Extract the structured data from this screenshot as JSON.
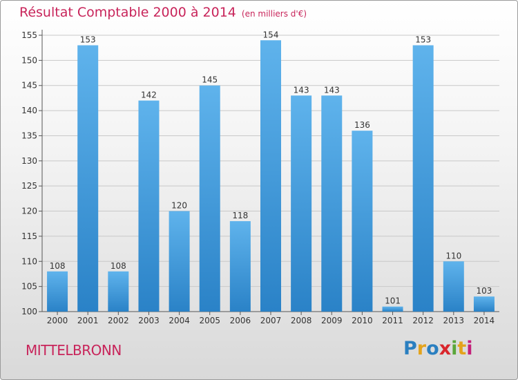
{
  "title": "Résultat Comptable 2000 à 2014",
  "unit_note": "(en milliers d'€)",
  "city": "MITTELBRONN",
  "logo": {
    "text": "Proxiti",
    "letters": [
      "P",
      "r",
      "o",
      "x",
      "i",
      "t",
      "i"
    ],
    "colors": [
      "#2a7fc0",
      "#e4a31c",
      "#2a7fc0",
      "#d9262c",
      "#5aa63a",
      "#e4a31c",
      "#c4207a"
    ]
  },
  "colors": {
    "bar_light": "#5fb3ec",
    "bar_dark": "#2a82c7",
    "title": "#c8245a",
    "grid": "#c8c8c8",
    "axis_text": "#333333"
  },
  "chart_data": {
    "type": "bar",
    "title": "Résultat Comptable 2000 à 2014",
    "subtitle": "(en milliers d'€)",
    "xlabel": "",
    "ylabel": "",
    "categories": [
      "2000",
      "2001",
      "2002",
      "2003",
      "2004",
      "2005",
      "2006",
      "2007",
      "2008",
      "2009",
      "2010",
      "2011",
      "2012",
      "2013",
      "2014"
    ],
    "values": [
      108,
      153,
      108,
      142,
      120,
      145,
      118,
      154,
      143,
      143,
      136,
      101,
      153,
      110,
      103
    ],
    "ylim": [
      100,
      155
    ],
    "yticks": [
      100,
      105,
      110,
      115,
      120,
      125,
      130,
      135,
      140,
      145,
      150,
      155
    ],
    "grid": true
  }
}
